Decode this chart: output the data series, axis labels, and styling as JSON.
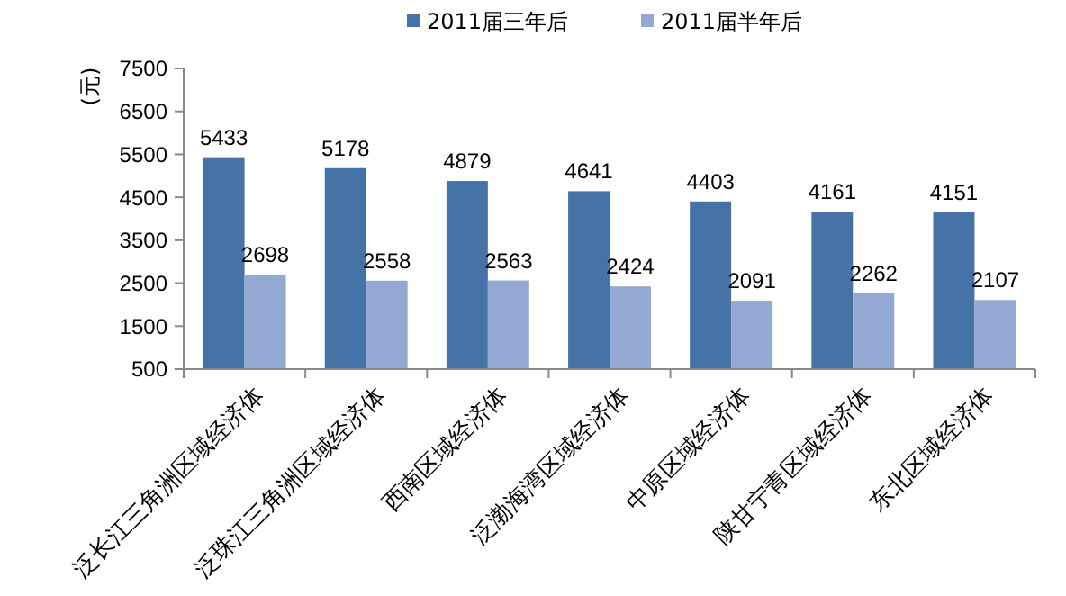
{
  "chart_data": {
    "type": "bar",
    "ylabel": "(元)",
    "categories": [
      "泛长江三角洲区域经济体",
      "泛珠江三角洲区域经济体",
      "西南区域经济体",
      "泛渤海湾区域经济体",
      "中原区域经济体",
      "陕甘宁青区域经济体",
      "东北区域经济体"
    ],
    "series": [
      {
        "name": "2011届三年后",
        "color": "#4572a7",
        "values": [
          5433,
          5178,
          4879,
          4641,
          4403,
          4161,
          4151
        ]
      },
      {
        "name": "2011届半年后",
        "color": "#93a9d4",
        "values": [
          2698,
          2558,
          2563,
          2424,
          2091,
          2262,
          2107
        ]
      }
    ],
    "ylim": [
      500,
      7500
    ],
    "yticks": [
      500,
      1500,
      2500,
      3500,
      4500,
      5500,
      6500,
      7500
    ],
    "data_labels": true,
    "grid": false,
    "legend": "top"
  }
}
